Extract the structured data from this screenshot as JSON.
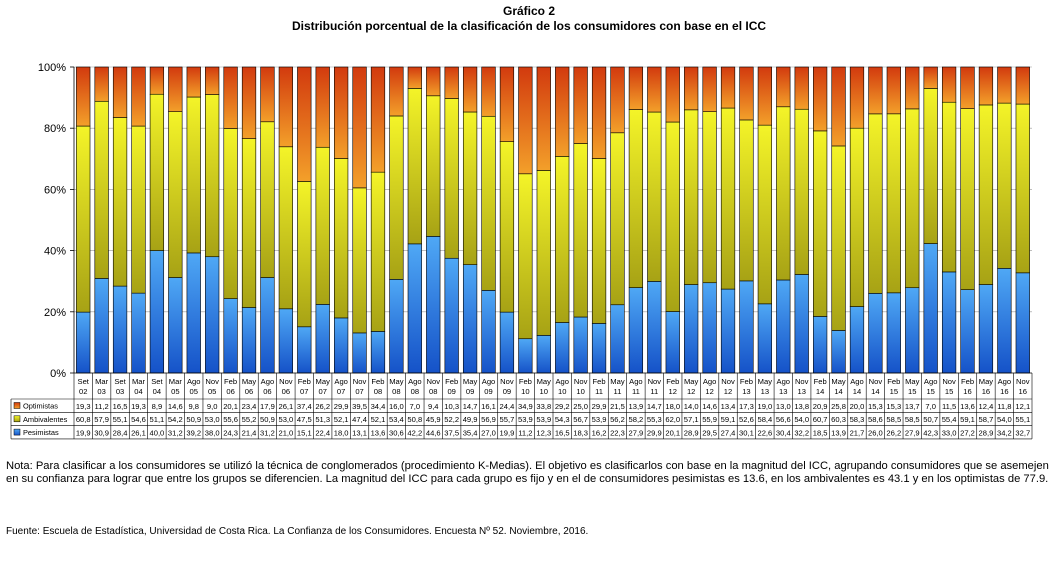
{
  "header": {
    "title": "Gráfico 2",
    "subtitle": "Distribución porcentual de la clasificación de los consumidores con base en el ICC"
  },
  "colors": {
    "optimistas": "#E0581C",
    "ambivalentes": "#E3E31A",
    "pesimistas": "#2E7BE3",
    "grid": "#999999",
    "axis": "#000000"
  },
  "chart_data": {
    "type": "bar",
    "stacked": true,
    "title": "Distribución porcentual de la clasificación de los consumidores con base en el ICC",
    "y_ticks": [
      "0%",
      "20%",
      "40%",
      "60%",
      "80%",
      "100%"
    ],
    "ylim": [
      0,
      100
    ],
    "grid": true,
    "legend_position": "table-left",
    "categories": [
      [
        "Set",
        "02"
      ],
      [
        "Mar",
        "03"
      ],
      [
        "Set",
        "03"
      ],
      [
        "Mar",
        "04"
      ],
      [
        "Set",
        "04"
      ],
      [
        "Mar",
        "05"
      ],
      [
        "Ago",
        "05"
      ],
      [
        "Nov",
        "05"
      ],
      [
        "Feb",
        "06"
      ],
      [
        "May",
        "06"
      ],
      [
        "Ago",
        "06"
      ],
      [
        "Nov",
        "06"
      ],
      [
        "Feb",
        "07"
      ],
      [
        "May",
        "07"
      ],
      [
        "Ago",
        "07"
      ],
      [
        "Nov",
        "07"
      ],
      [
        "Feb",
        "08"
      ],
      [
        "May",
        "08"
      ],
      [
        "Ago",
        "08"
      ],
      [
        "Nov",
        "08"
      ],
      [
        "Feb",
        "09"
      ],
      [
        "May",
        "09"
      ],
      [
        "Ago",
        "09"
      ],
      [
        "Nov",
        "09"
      ],
      [
        "Feb",
        "10"
      ],
      [
        "May",
        "10"
      ],
      [
        "Ago",
        "10"
      ],
      [
        "Nov",
        "10"
      ],
      [
        "Feb",
        "11"
      ],
      [
        "May",
        "11"
      ],
      [
        "Ago",
        "11"
      ],
      [
        "Nov",
        "11"
      ],
      [
        "Feb",
        "12"
      ],
      [
        "May",
        "12"
      ],
      [
        "Ago",
        "12"
      ],
      [
        "Nov",
        "12"
      ],
      [
        "Feb",
        "13"
      ],
      [
        "May",
        "13"
      ],
      [
        "Ago",
        "13"
      ],
      [
        "Nov",
        "13"
      ],
      [
        "Feb",
        "14"
      ],
      [
        "May",
        "14"
      ],
      [
        "Ago",
        "14"
      ],
      [
        "Nov",
        "14"
      ],
      [
        "Feb",
        "15"
      ],
      [
        "May",
        "15"
      ],
      [
        "Ago",
        "15"
      ],
      [
        "Nov",
        "15"
      ],
      [
        "Feb",
        "16"
      ],
      [
        "May",
        "16"
      ],
      [
        "Ago",
        "16"
      ],
      [
        "Nov",
        "16"
      ]
    ],
    "series": [
      {
        "name": "Optimistas",
        "color_key": "optimistas",
        "values": [
          "19,3",
          "11,2",
          "16,5",
          "19,3",
          "8,9",
          "14,6",
          "9,8",
          "9,0",
          "20,1",
          "23,4",
          "17,9",
          "26,1",
          "37,4",
          "26,2",
          "29,9",
          "39,5",
          "34,4",
          "16,0",
          "7,0",
          "9,4",
          "10,3",
          "14,7",
          "16,1",
          "24,4",
          "34,9",
          "33,8",
          "29,2",
          "25,0",
          "29,9",
          "21,5",
          "13,9",
          "14,7",
          "18,0",
          "14,0",
          "14,6",
          "13,4",
          "17,3",
          "19,0",
          "13,0",
          "13,8",
          "20,9",
          "25,8",
          "20,0",
          "15,3",
          "15,3",
          "13,7",
          "7,0",
          "11,5",
          "13,6",
          "12,4",
          "11,8",
          "12,1"
        ]
      },
      {
        "name": "Ambivalentes",
        "color_key": "ambivalentes",
        "values": [
          "60,8",
          "57,9",
          "55,1",
          "54,6",
          "51,1",
          "54,2",
          "50,9",
          "53,0",
          "55,6",
          "55,2",
          "50,9",
          "53,0",
          "47,5",
          "51,3",
          "52,1",
          "47,4",
          "52,1",
          "53,4",
          "50,8",
          "45,9",
          "52,2",
          "49,9",
          "56,9",
          "55,7",
          "53,9",
          "53,9",
          "54,3",
          "56,7",
          "53,9",
          "56,2",
          "58,2",
          "55,3",
          "62,0",
          "57,1",
          "55,9",
          "59,1",
          "52,6",
          "58,4",
          "56,6",
          "54,0",
          "60,7",
          "60,3",
          "58,3",
          "58,6",
          "58,5",
          "58,5",
          "50,7",
          "55,4",
          "59,1",
          "58,7",
          "54,0",
          "55,1"
        ]
      },
      {
        "name": "Pesimistas",
        "color_key": "pesimistas",
        "values": [
          "19,9",
          "30,9",
          "28,4",
          "26,1",
          "40,0",
          "31,2",
          "39,2",
          "38,0",
          "24,3",
          "21,4",
          "31,2",
          "21,0",
          "15,1",
          "22,4",
          "18,0",
          "13,1",
          "13,6",
          "30,6",
          "42,2",
          "44,6",
          "37,5",
          "35,4",
          "27,0",
          "19,9",
          "11,2",
          "12,3",
          "16,5",
          "18,3",
          "16,2",
          "22,3",
          "27,9",
          "29,9",
          "20,1",
          "28,9",
          "29,5",
          "27,4",
          "30,1",
          "22,6",
          "30,4",
          "32,2",
          "18,5",
          "13,9",
          "21,7",
          "26,0",
          "26,2",
          "27,9",
          "42,3",
          "33,0",
          "27,2",
          "28,9",
          "34,2",
          "32,7"
        ]
      }
    ]
  },
  "note": "Nota: Para clasificar a los consumidores se utilizó la técnica de conglomerados (procedimiento K-Medias). El objetivo es clasificarlos con base en la magnitud del ICC, agrupando consumidores que se asemejen en su confianza para lograr que entre los grupos se diferencien. La magnitud del ICC para cada grupo es fijo y en el de consumidores pesimistas es 13.6, en los ambivalentes es 43.1 y en los optimistas de 77.9.",
  "source": "Fuente: Escuela de Estadística, Universidad de Costa Rica. La Confianza de los Consumidores. Encuesta Nº 52. Noviembre, 2016."
}
